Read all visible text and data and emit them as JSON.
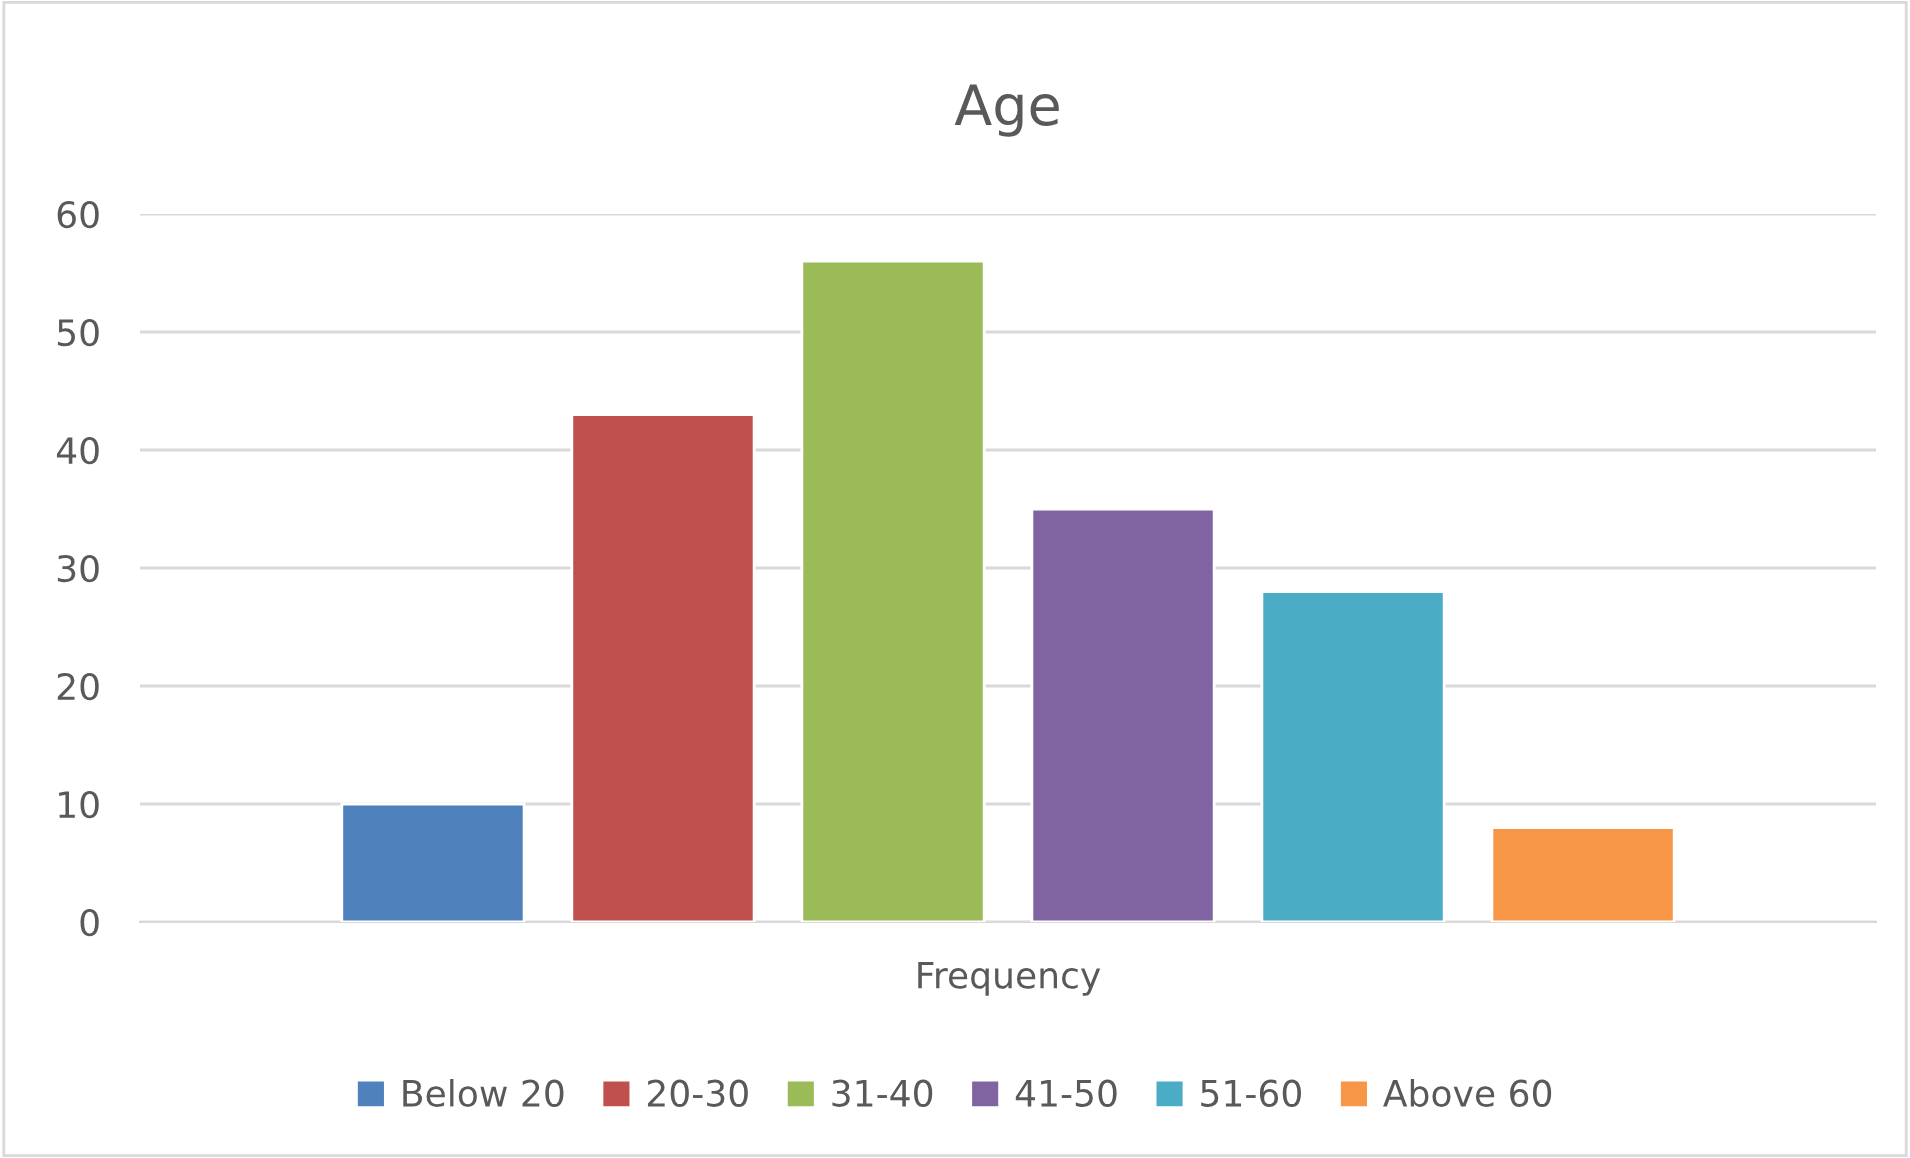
{
  "chart_data": {
    "type": "bar",
    "title": "Age",
    "categories": [
      "Frequency"
    ],
    "series": [
      {
        "name": "Below 20",
        "color": "#4f81bd",
        "values": [
          10
        ]
      },
      {
        "name": "20-30",
        "color": "#c0504d",
        "values": [
          43
        ]
      },
      {
        "name": "31-40",
        "color": "#9bbb59",
        "values": [
          56
        ]
      },
      {
        "name": "41-50",
        "color": "#8064a2",
        "values": [
          35
        ]
      },
      {
        "name": "51-60",
        "color": "#4bacc6",
        "values": [
          28
        ]
      },
      {
        "name": "Above 60",
        "color": "#f79646",
        "values": [
          8
        ]
      }
    ],
    "ylim": [
      0,
      60
    ],
    "yticks": [
      0,
      10,
      20,
      30,
      40,
      50,
      60
    ],
    "grid": "y",
    "legend": "bottom"
  }
}
